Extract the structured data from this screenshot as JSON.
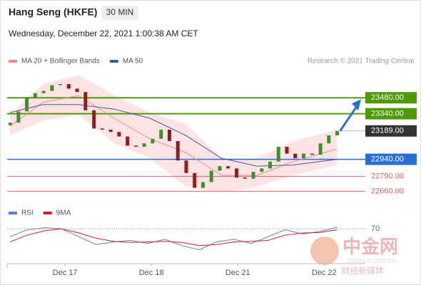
{
  "header": {
    "title": "Hang Seng (HKFE)",
    "timeframe": "30 MIN",
    "datetime": "Wednesday, December 22, 2021 1:00:38 AM CET",
    "credit": "Research © 2021 Trading Central"
  },
  "watermark": {
    "brand": "中金网",
    "tagline": "财经新媒体",
    "site": "CNGOLD.COM.CN"
  },
  "chart_data": [
    {
      "type": "candlestick",
      "xlim": [
        0.33,
        4.46
      ],
      "ylim": [
        22550,
        23650
      ],
      "up_color": "#3f8f2f",
      "down_color": "#8e1f1f",
      "candles": {
        "x": [
          0.364,
          0.461,
          0.558,
          0.655,
          0.752,
          0.849,
          0.946,
          1.043,
          1.14,
          1.237,
          1.335,
          1.432,
          1.529,
          1.626,
          1.723,
          1.82,
          1.917,
          2.014,
          2.112,
          2.209,
          2.306,
          2.403,
          2.5,
          2.597,
          2.694,
          2.791,
          2.888,
          2.986,
          3.083,
          3.18,
          3.277,
          3.374,
          3.471,
          3.568,
          3.665,
          3.762,
          3.86,
          3.957,
          4.054,
          4.151
        ],
        "open": [
          23240,
          23261,
          23360,
          23480,
          23520,
          23540,
          23590,
          23600,
          23560,
          23530,
          23370,
          23210,
          23200,
          23180,
          23140,
          23060,
          23050,
          23080,
          23120,
          23200,
          23100,
          22930,
          22820,
          22690,
          22740,
          22840,
          22880,
          22860,
          22780,
          22770,
          22830,
          22860,
          22920,
          23050,
          22990,
          22950,
          22990,
          22980,
          23080,
          23150
        ],
        "close": [
          23261,
          23360,
          23480,
          23520,
          23540,
          23590,
          23600,
          23560,
          23530,
          23370,
          23210,
          23200,
          23180,
          23140,
          23060,
          23050,
          23080,
          23120,
          23200,
          23100,
          22930,
          22820,
          22690,
          22740,
          22840,
          22880,
          22860,
          22780,
          22770,
          22830,
          22860,
          22920,
          23050,
          22990,
          22950,
          22990,
          22980,
          23080,
          23150,
          23189
        ]
      },
      "line_x": [
        0.364,
        0.744,
        1.157,
        1.57,
        1.983,
        2.397,
        2.81,
        3.223,
        3.636,
        4.149
      ],
      "series": [
        {
          "name": "MA 20 + Bollinger Bands",
          "color": "#f08a8a",
          "band_color": "#fde3e3",
          "values": [
            23230,
            23440,
            23500,
            23300,
            23120,
            23000,
            22800,
            22800,
            22920,
            23030
          ],
          "band_upper": [
            23330,
            23600,
            23680,
            23500,
            23350,
            23250,
            22950,
            22950,
            23100,
            23200
          ],
          "band_lower": [
            23150,
            23280,
            23330,
            23080,
            22950,
            22700,
            22650,
            22700,
            22800,
            22890
          ]
        },
        {
          "name": "MA 50",
          "color": "#3c5a99",
          "values": [
            23350,
            23420,
            23420,
            23380,
            23300,
            23150,
            22950,
            22880,
            22890,
            22940
          ]
        }
      ],
      "levels": [
        {
          "value": 23480,
          "label": "23480.00",
          "color": "#4d9a06",
          "style": "box"
        },
        {
          "value": 23340,
          "label": "23340.00",
          "color": "#4d9a06",
          "style": "box"
        },
        {
          "value": 23189,
          "label": "23189.00",
          "color": "#333333",
          "style": "current"
        },
        {
          "value": 22940,
          "label": "22940.00",
          "color": "#2a6fd6",
          "style": "box"
        },
        {
          "value": 22790,
          "label": "22790.00",
          "color": "#e06060",
          "style": "text"
        },
        {
          "value": 22660,
          "label": "22660.00",
          "color": "#e06060",
          "style": "text"
        }
      ]
    },
    {
      "type": "line",
      "xlim": [
        0.33,
        4.46
      ],
      "ylim": [
        20,
        85
      ],
      "x": [
        0.364,
        0.563,
        0.762,
        0.961,
        1.16,
        1.36,
        1.559,
        1.758,
        1.957,
        2.156,
        2.355,
        2.555,
        2.754,
        2.957,
        3.156,
        3.351,
        3.55,
        3.75,
        3.953,
        4.149
      ],
      "series": [
        {
          "name": "RSI",
          "color": "#5b7fd6",
          "values": [
            55,
            68,
            72,
            70,
            55,
            40,
            45,
            48,
            42,
            50,
            38,
            30,
            45,
            50,
            42,
            55,
            68,
            60,
            65,
            73
          ]
        },
        {
          "name": "9MA",
          "color": "#d42020",
          "values": [
            45,
            58,
            66,
            70,
            62,
            52,
            46,
            44,
            45,
            46,
            44,
            38,
            40,
            45,
            46,
            48,
            58,
            62,
            63,
            68
          ]
        }
      ],
      "yticks": [
        70
      ],
      "xticks": [
        {
          "value": 1,
          "label": "Dec 17"
        },
        {
          "value": 2,
          "label": "Dec 18"
        },
        {
          "value": 3,
          "label": "Dec 21"
        },
        {
          "value": 4,
          "label": "Dec 22"
        }
      ]
    }
  ]
}
